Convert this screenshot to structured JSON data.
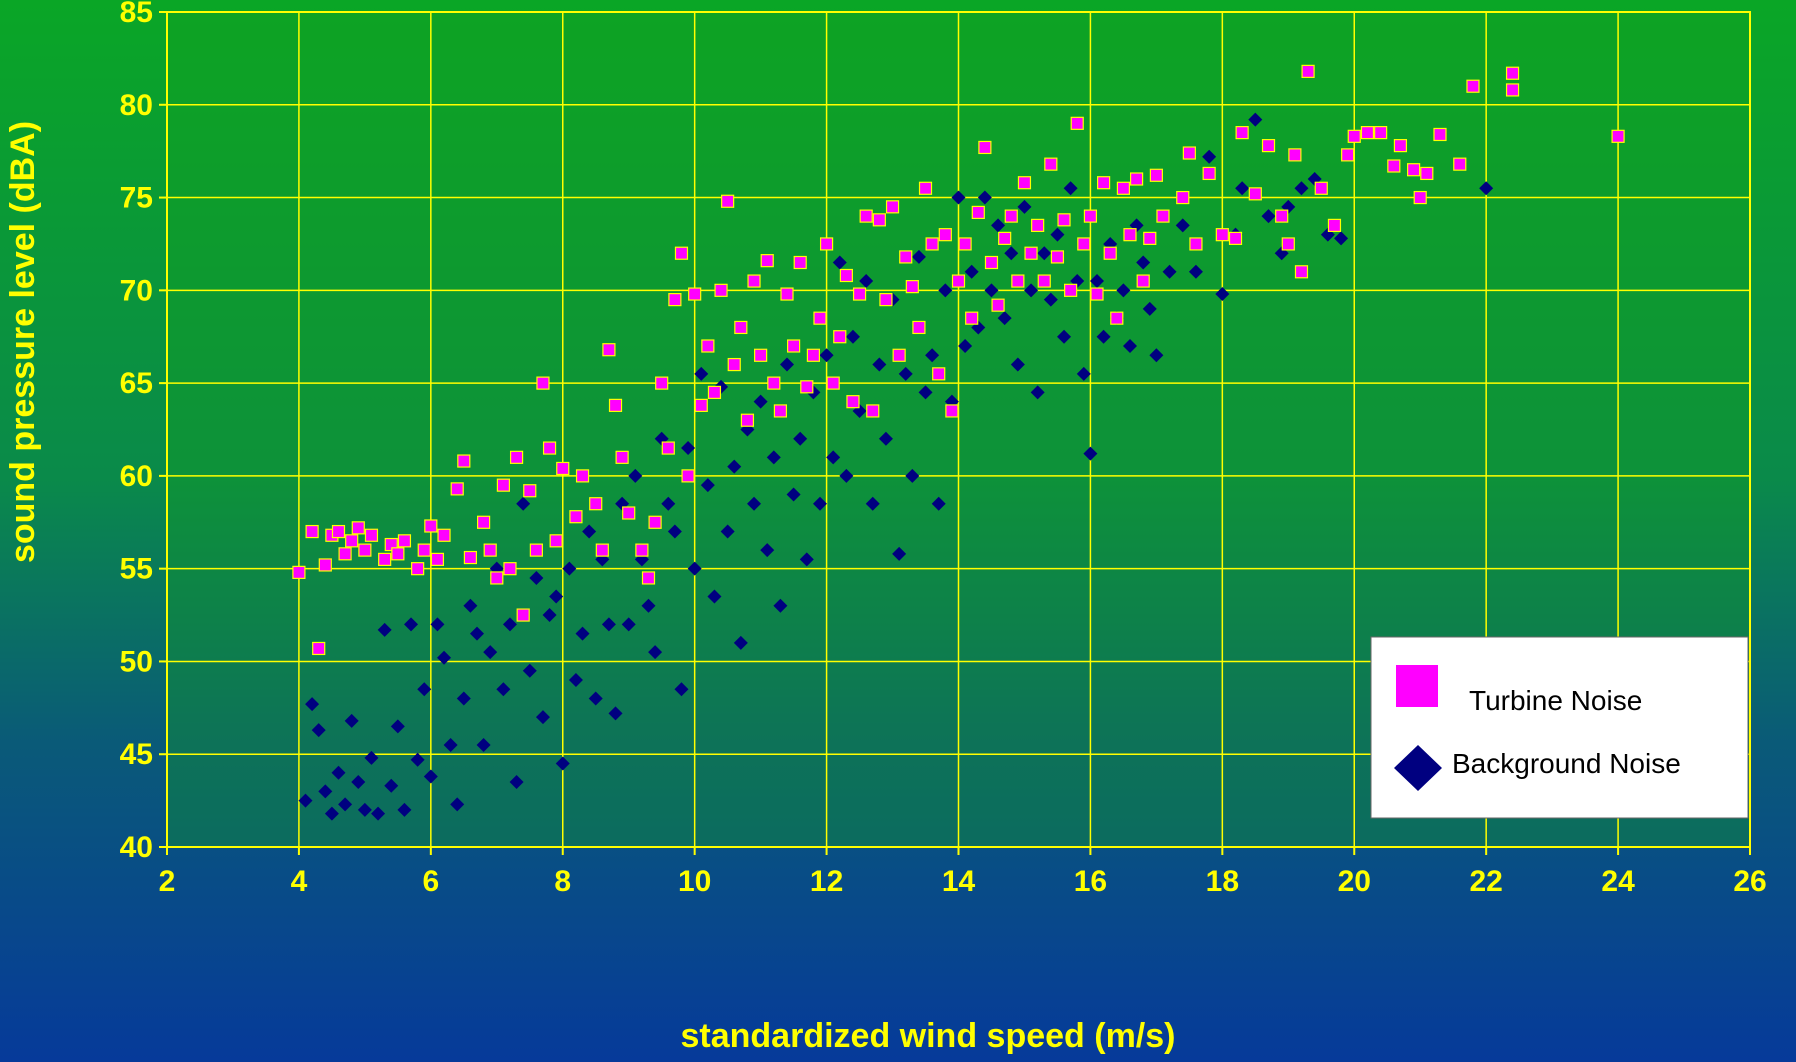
{
  "chart_data": {
    "type": "scatter",
    "xlabel": "standardized wind speed (m/s)",
    "ylabel": "sound pressure level (dBA)",
    "xlim": [
      2,
      26
    ],
    "ylim": [
      40,
      85
    ],
    "xticks": [
      2,
      4,
      6,
      8,
      10,
      12,
      14,
      16,
      18,
      20,
      22,
      24,
      26
    ],
    "yticks": [
      40,
      45,
      50,
      55,
      60,
      65,
      70,
      75,
      80,
      85
    ],
    "grid": true,
    "legend_position": "bottom-right",
    "colors": {
      "plot_background": "#1a9a1a",
      "grid": "#ffff00",
      "text": "#ffff00",
      "turbine": "#ff00ff",
      "turbine_outline": "#ffff00",
      "background": "#000080"
    },
    "series": [
      {
        "name": "Turbine Noise",
        "marker": "square",
        "points": [
          [
            4.0,
            54.8
          ],
          [
            4.2,
            57.0
          ],
          [
            4.3,
            50.7
          ],
          [
            4.4,
            55.2
          ],
          [
            4.5,
            56.8
          ],
          [
            4.6,
            57.0
          ],
          [
            4.7,
            55.8
          ],
          [
            4.8,
            56.5
          ],
          [
            4.9,
            57.2
          ],
          [
            5.0,
            56.0
          ],
          [
            5.1,
            56.8
          ],
          [
            5.3,
            55.5
          ],
          [
            5.4,
            56.3
          ],
          [
            5.5,
            55.8
          ],
          [
            5.6,
            56.5
          ],
          [
            5.8,
            55.0
          ],
          [
            5.9,
            56.0
          ],
          [
            6.0,
            57.3
          ],
          [
            6.1,
            55.5
          ],
          [
            6.2,
            56.8
          ],
          [
            6.4,
            59.3
          ],
          [
            6.5,
            60.8
          ],
          [
            6.6,
            55.6
          ],
          [
            6.8,
            57.5
          ],
          [
            6.9,
            56.0
          ],
          [
            7.0,
            54.5
          ],
          [
            7.1,
            59.5
          ],
          [
            7.2,
            55.0
          ],
          [
            7.3,
            61.0
          ],
          [
            7.4,
            52.5
          ],
          [
            7.5,
            59.2
          ],
          [
            7.6,
            56.0
          ],
          [
            7.7,
            65.0
          ],
          [
            7.8,
            61.5
          ],
          [
            7.9,
            56.5
          ],
          [
            8.0,
            60.4
          ],
          [
            8.2,
            57.8
          ],
          [
            8.3,
            60.0
          ],
          [
            8.5,
            58.5
          ],
          [
            8.6,
            56.0
          ],
          [
            8.7,
            66.8
          ],
          [
            8.8,
            63.8
          ],
          [
            8.9,
            61.0
          ],
          [
            9.0,
            58.0
          ],
          [
            9.2,
            56.0
          ],
          [
            9.3,
            54.5
          ],
          [
            9.4,
            57.5
          ],
          [
            9.5,
            65.0
          ],
          [
            9.6,
            61.5
          ],
          [
            9.7,
            69.5
          ],
          [
            9.8,
            72.0
          ],
          [
            9.9,
            60.0
          ],
          [
            10.0,
            69.8
          ],
          [
            10.1,
            63.8
          ],
          [
            10.2,
            67.0
          ],
          [
            10.3,
            64.5
          ],
          [
            10.4,
            70.0
          ],
          [
            10.5,
            74.8
          ],
          [
            10.6,
            66.0
          ],
          [
            10.7,
            68.0
          ],
          [
            10.8,
            63.0
          ],
          [
            10.9,
            70.5
          ],
          [
            11.0,
            66.5
          ],
          [
            11.1,
            71.6
          ],
          [
            11.2,
            65.0
          ],
          [
            11.3,
            63.5
          ],
          [
            11.4,
            69.8
          ],
          [
            11.5,
            67.0
          ],
          [
            11.6,
            71.5
          ],
          [
            11.7,
            64.8
          ],
          [
            11.8,
            66.5
          ],
          [
            11.9,
            68.5
          ],
          [
            12.0,
            72.5
          ],
          [
            12.1,
            65.0
          ],
          [
            12.2,
            67.5
          ],
          [
            12.3,
            70.8
          ],
          [
            12.4,
            64.0
          ],
          [
            12.5,
            69.8
          ],
          [
            12.6,
            74.0
          ],
          [
            12.7,
            63.5
          ],
          [
            12.8,
            73.8
          ],
          [
            12.9,
            69.5
          ],
          [
            13.0,
            74.5
          ],
          [
            13.1,
            66.5
          ],
          [
            13.2,
            71.8
          ],
          [
            13.3,
            70.2
          ],
          [
            13.4,
            68.0
          ],
          [
            13.5,
            75.5
          ],
          [
            13.6,
            72.5
          ],
          [
            13.7,
            65.5
          ],
          [
            13.8,
            73.0
          ],
          [
            13.9,
            63.5
          ],
          [
            14.0,
            70.5
          ],
          [
            14.1,
            72.5
          ],
          [
            14.2,
            68.5
          ],
          [
            14.3,
            74.2
          ],
          [
            14.4,
            77.7
          ],
          [
            14.5,
            71.5
          ],
          [
            14.6,
            69.2
          ],
          [
            14.7,
            72.8
          ],
          [
            14.8,
            74.0
          ],
          [
            14.9,
            70.5
          ],
          [
            15.0,
            75.8
          ],
          [
            15.1,
            72.0
          ],
          [
            15.2,
            73.5
          ],
          [
            15.3,
            70.5
          ],
          [
            15.4,
            76.8
          ],
          [
            15.5,
            71.8
          ],
          [
            15.6,
            73.8
          ],
          [
            15.7,
            70.0
          ],
          [
            15.8,
            79.0
          ],
          [
            15.9,
            72.5
          ],
          [
            16.0,
            74.0
          ],
          [
            16.1,
            69.8
          ],
          [
            16.2,
            75.8
          ],
          [
            16.3,
            72.0
          ],
          [
            16.4,
            68.5
          ],
          [
            16.5,
            75.5
          ],
          [
            16.6,
            73.0
          ],
          [
            16.7,
            76.0
          ],
          [
            16.8,
            70.5
          ],
          [
            16.9,
            72.8
          ],
          [
            17.0,
            76.2
          ],
          [
            17.1,
            74.0
          ],
          [
            17.4,
            75.0
          ],
          [
            17.5,
            77.4
          ],
          [
            17.6,
            72.5
          ],
          [
            17.8,
            76.3
          ],
          [
            18.0,
            73.0
          ],
          [
            18.2,
            72.8
          ],
          [
            18.3,
            78.5
          ],
          [
            18.5,
            75.2
          ],
          [
            18.7,
            77.8
          ],
          [
            18.9,
            74.0
          ],
          [
            19.0,
            72.5
          ],
          [
            19.1,
            77.3
          ],
          [
            19.2,
            71.0
          ],
          [
            19.3,
            81.8
          ],
          [
            19.5,
            75.5
          ],
          [
            19.7,
            73.5
          ],
          [
            19.9,
            77.3
          ],
          [
            20.0,
            78.3
          ],
          [
            20.2,
            78.5
          ],
          [
            20.4,
            78.5
          ],
          [
            20.6,
            76.7
          ],
          [
            20.7,
            77.8
          ],
          [
            20.9,
            76.5
          ],
          [
            21.0,
            75.0
          ],
          [
            21.1,
            76.3
          ],
          [
            21.3,
            78.4
          ],
          [
            21.6,
            76.8
          ],
          [
            21.8,
            81.0
          ],
          [
            22.4,
            80.8
          ],
          [
            22.4,
            81.7
          ],
          [
            24.0,
            78.3
          ]
        ]
      },
      {
        "name": "Background Noise",
        "marker": "diamond",
        "points": [
          [
            4.1,
            42.5
          ],
          [
            4.2,
            47.7
          ],
          [
            4.3,
            46.3
          ],
          [
            4.4,
            43.0
          ],
          [
            4.5,
            41.8
          ],
          [
            4.6,
            44.0
          ],
          [
            4.7,
            42.3
          ],
          [
            4.8,
            46.8
          ],
          [
            4.9,
            43.5
          ],
          [
            5.0,
            42.0
          ],
          [
            5.1,
            44.8
          ],
          [
            5.2,
            41.8
          ],
          [
            5.3,
            51.7
          ],
          [
            5.4,
            43.3
          ],
          [
            5.5,
            46.5
          ],
          [
            5.6,
            42.0
          ],
          [
            5.7,
            52.0
          ],
          [
            5.8,
            44.7
          ],
          [
            5.9,
            48.5
          ],
          [
            6.0,
            43.8
          ],
          [
            6.1,
            52.0
          ],
          [
            6.2,
            50.2
          ],
          [
            6.3,
            45.5
          ],
          [
            6.4,
            42.3
          ],
          [
            6.5,
            48.0
          ],
          [
            6.6,
            53.0
          ],
          [
            6.7,
            51.5
          ],
          [
            6.8,
            45.5
          ],
          [
            6.9,
            50.5
          ],
          [
            7.0,
            55.0
          ],
          [
            7.1,
            48.5
          ],
          [
            7.2,
            52.0
          ],
          [
            7.3,
            43.5
          ],
          [
            7.4,
            58.5
          ],
          [
            7.5,
            49.5
          ],
          [
            7.6,
            54.5
          ],
          [
            7.7,
            47.0
          ],
          [
            7.8,
            52.5
          ],
          [
            7.9,
            53.5
          ],
          [
            8.0,
            44.5
          ],
          [
            8.1,
            55.0
          ],
          [
            8.2,
            49.0
          ],
          [
            8.3,
            51.5
          ],
          [
            8.4,
            57.0
          ],
          [
            8.5,
            48.0
          ],
          [
            8.6,
            55.5
          ],
          [
            8.7,
            52.0
          ],
          [
            8.8,
            47.2
          ],
          [
            8.9,
            58.5
          ],
          [
            9.0,
            52.0
          ],
          [
            9.1,
            60.0
          ],
          [
            9.2,
            55.5
          ],
          [
            9.3,
            53.0
          ],
          [
            9.4,
            50.5
          ],
          [
            9.5,
            62.0
          ],
          [
            9.6,
            58.5
          ],
          [
            9.7,
            57.0
          ],
          [
            9.8,
            48.5
          ],
          [
            9.9,
            61.5
          ],
          [
            10.0,
            55.0
          ],
          [
            10.1,
            65.5
          ],
          [
            10.2,
            59.5
          ],
          [
            10.3,
            53.5
          ],
          [
            10.4,
            64.8
          ],
          [
            10.5,
            57.0
          ],
          [
            10.6,
            60.5
          ],
          [
            10.7,
            51.0
          ],
          [
            10.8,
            62.5
          ],
          [
            10.9,
            58.5
          ],
          [
            11.0,
            64.0
          ],
          [
            11.1,
            56.0
          ],
          [
            11.2,
            61.0
          ],
          [
            11.3,
            53.0
          ],
          [
            11.4,
            66.0
          ],
          [
            11.5,
            59.0
          ],
          [
            11.6,
            62.0
          ],
          [
            11.7,
            55.5
          ],
          [
            11.8,
            64.5
          ],
          [
            11.9,
            58.5
          ],
          [
            12.0,
            66.5
          ],
          [
            12.1,
            61.0
          ],
          [
            12.2,
            71.5
          ],
          [
            12.3,
            60.0
          ],
          [
            12.4,
            67.5
          ],
          [
            12.5,
            63.5
          ],
          [
            12.6,
            70.5
          ],
          [
            12.7,
            58.5
          ],
          [
            12.8,
            66.0
          ],
          [
            12.9,
            62.0
          ],
          [
            13.0,
            69.5
          ],
          [
            13.1,
            55.8
          ],
          [
            13.2,
            65.5
          ],
          [
            13.3,
            60.0
          ],
          [
            13.4,
            71.8
          ],
          [
            13.5,
            64.5
          ],
          [
            13.6,
            66.5
          ],
          [
            13.7,
            58.5
          ],
          [
            13.8,
            70.0
          ],
          [
            13.9,
            64.0
          ],
          [
            14.0,
            75.0
          ],
          [
            14.1,
            67.0
          ],
          [
            14.2,
            71.0
          ],
          [
            14.3,
            68.0
          ],
          [
            14.4,
            75.0
          ],
          [
            14.5,
            70.0
          ],
          [
            14.6,
            73.5
          ],
          [
            14.7,
            68.5
          ],
          [
            14.8,
            72.0
          ],
          [
            14.9,
            66.0
          ],
          [
            15.0,
            74.5
          ],
          [
            15.1,
            70.0
          ],
          [
            15.2,
            64.5
          ],
          [
            15.3,
            72.0
          ],
          [
            15.4,
            69.5
          ],
          [
            15.5,
            73.0
          ],
          [
            15.6,
            67.5
          ],
          [
            15.7,
            75.5
          ],
          [
            15.8,
            70.5
          ],
          [
            15.9,
            65.5
          ],
          [
            16.0,
            61.2
          ],
          [
            16.1,
            70.5
          ],
          [
            16.2,
            67.5
          ],
          [
            16.3,
            72.5
          ],
          [
            16.4,
            68.5
          ],
          [
            16.5,
            70.0
          ],
          [
            16.6,
            67.0
          ],
          [
            16.7,
            73.5
          ],
          [
            16.8,
            71.5
          ],
          [
            16.9,
            69.0
          ],
          [
            17.0,
            66.5
          ],
          [
            17.2,
            71.0
          ],
          [
            17.4,
            73.5
          ],
          [
            17.6,
            71.0
          ],
          [
            17.8,
            77.2
          ],
          [
            18.0,
            69.8
          ],
          [
            18.2,
            73.0
          ],
          [
            18.3,
            75.5
          ],
          [
            18.5,
            79.2
          ],
          [
            18.7,
            74.0
          ],
          [
            18.9,
            72.0
          ],
          [
            19.0,
            74.5
          ],
          [
            19.2,
            75.5
          ],
          [
            19.4,
            76.0
          ],
          [
            19.6,
            73.0
          ],
          [
            19.8,
            72.8
          ],
          [
            22.0,
            75.5
          ]
        ]
      }
    ]
  }
}
